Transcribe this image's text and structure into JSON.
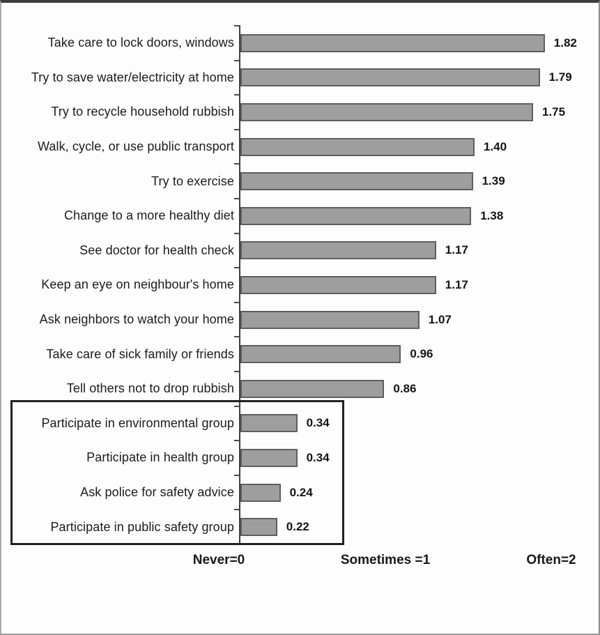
{
  "chart_data": {
    "type": "bar",
    "orientation": "horizontal",
    "title": "",
    "xlabel": "",
    "ylabel": "",
    "xlim": [
      0,
      2
    ],
    "categories": [
      "Take care to lock doors, windows",
      "Try to save water/electricity at home",
      "Try to recycle household rubbish",
      "Walk, cycle, or use public transport",
      "Try to exercise",
      "Change to a more healthy diet",
      "See doctor for health check",
      "Keep an eye on neighbour's home",
      "Ask neighbors to watch your home",
      "Take care of sick family or friends",
      "Tell others not to drop rubbish",
      "Participate in environmental group",
      "Participate in health group",
      "Ask police for safety advice",
      "Participate in public safety group"
    ],
    "values": [
      1.82,
      1.79,
      1.75,
      1.4,
      1.39,
      1.38,
      1.17,
      1.17,
      1.07,
      0.96,
      0.86,
      0.34,
      0.34,
      0.24,
      0.22
    ],
    "value_labels": [
      "1.82",
      "1.79",
      "1.75",
      "1.40",
      "1.39",
      "1.38",
      "1.17",
      "1.17",
      "1.07",
      "0.96",
      "0.86",
      "0.34",
      "0.34",
      "0.24",
      "0.22"
    ],
    "x_axis_labels": [
      "Never=0",
      "Sometimes =1",
      "Often=2"
    ],
    "highlighted_categories": [
      "Participate in environmental group",
      "Participate in health group",
      "Ask police for safety advice",
      "Participate in public safety group"
    ],
    "grid": "off",
    "legend": "none",
    "colors": {
      "bar_fill": "#9e9e9e",
      "bar_border": "#5e5e5e",
      "axis": "#3f3f3f",
      "text": "#1b1b1b",
      "highlight_box_border": "#222222",
      "frame_border": "#3c3c3c",
      "background": "#fdfdfd"
    }
  }
}
